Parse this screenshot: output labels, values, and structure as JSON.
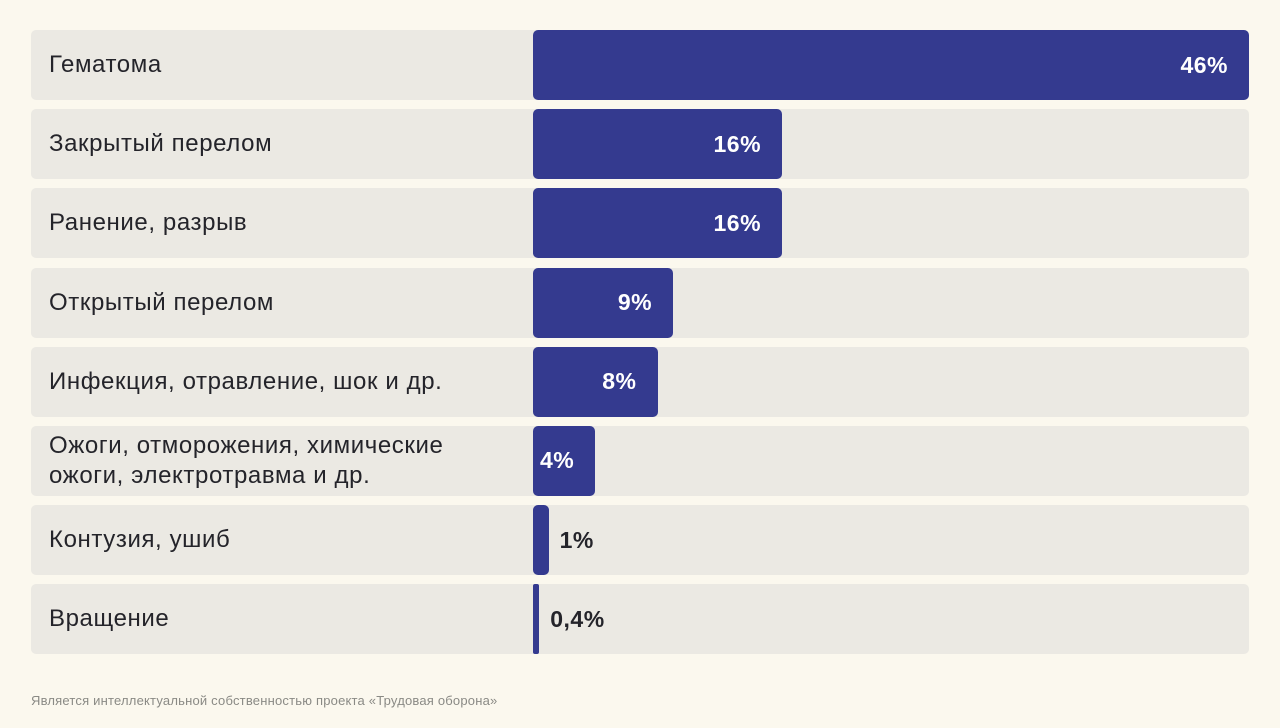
{
  "chart_data": {
    "type": "bar",
    "orientation": "horizontal",
    "categories": [
      "Гематома",
      "Закрытый перелом",
      "Ранение, разрыв",
      "Открытый перелом",
      "Инфекция, отравление, шок и др.",
      "Ожоги, отморожения, химические ожоги, электротравма и др.",
      "Контузия, ушиб",
      "Вращение"
    ],
    "values": [
      46,
      16,
      16,
      9,
      8,
      4,
      1,
      0.4
    ],
    "value_labels": [
      "46%",
      "16%",
      "16%",
      "9%",
      "8%",
      "4%",
      "1%",
      "0,4%"
    ],
    "xlim": [
      0,
      46
    ],
    "grid": false,
    "colors": {
      "bar": "#343a8f",
      "track": "#ebe9e3",
      "background": "#fbf8ee"
    }
  },
  "footnote": "Является интеллектуальной собственностью проекта «Трудовая оборона»"
}
